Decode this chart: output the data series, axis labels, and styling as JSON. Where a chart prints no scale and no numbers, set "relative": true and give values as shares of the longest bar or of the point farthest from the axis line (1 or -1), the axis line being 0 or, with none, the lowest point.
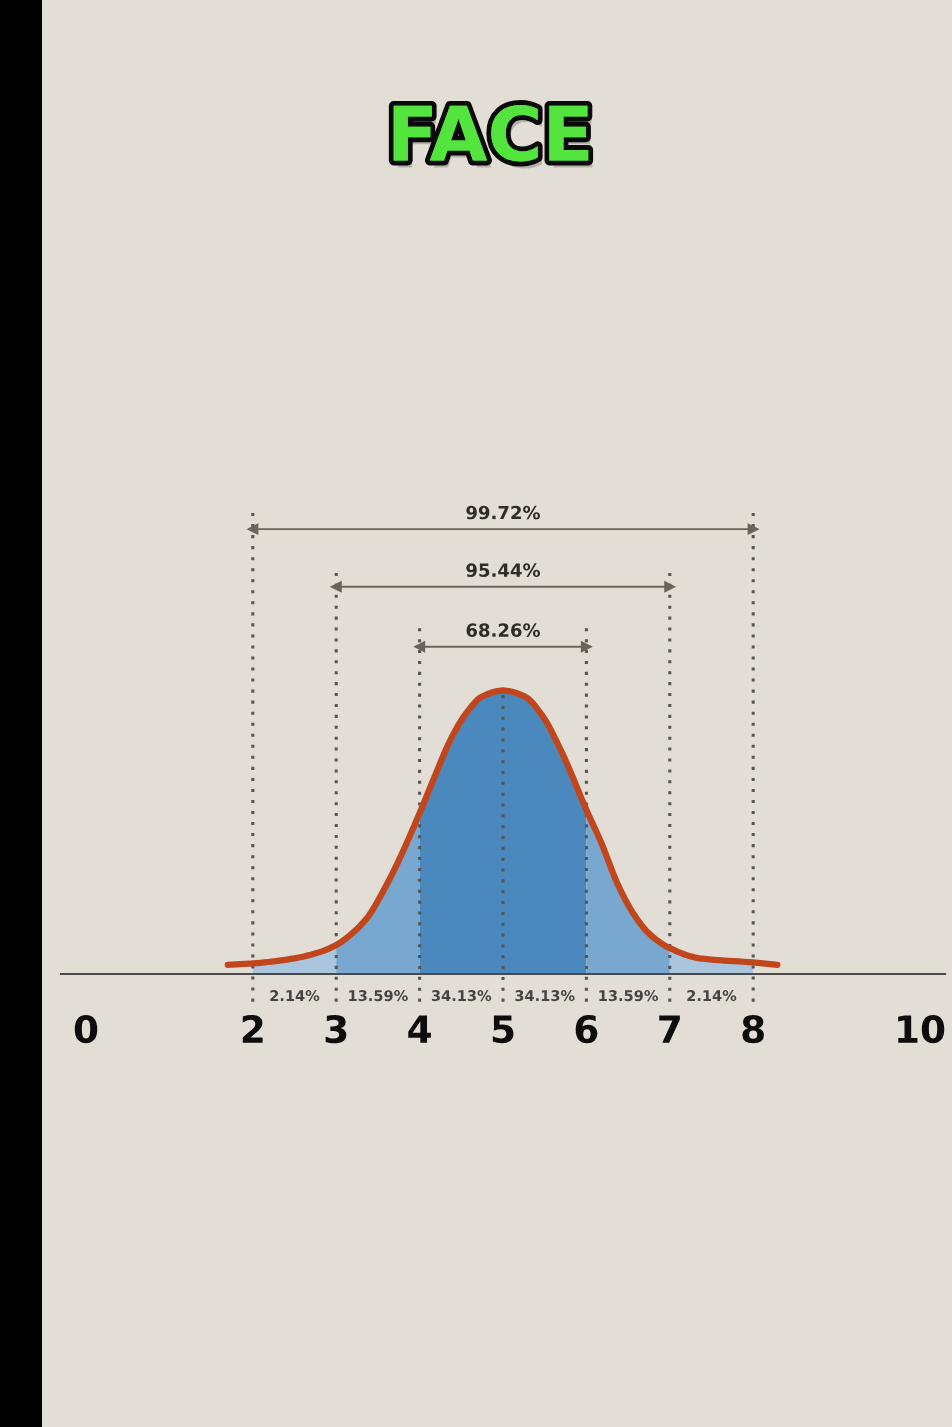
{
  "chart_data": {
    "type": "line",
    "title": "FACE",
    "relative": true,
    "tick_labels": "x",
    "xlim": [
      -0.3,
      10.3
    ],
    "xticks": [
      0,
      2,
      3,
      4,
      5,
      6,
      7,
      8,
      10
    ],
    "series": [
      {
        "type": "area",
        "color": "#a9c6de",
        "x": [
          2,
          2.5,
          2.81,
          3
        ],
        "values": [
          0.023,
          0.034,
          0.048,
          0.063
        ]
      },
      {
        "type": "area",
        "color": "#78a8d0",
        "x": [
          3,
          3.19,
          3.38,
          3.57,
          3.77,
          4
        ],
        "values": [
          0.063,
          0.088,
          0.124,
          0.182,
          0.254,
          0.349
        ]
      },
      {
        "type": "area",
        "color": "#4b88bd",
        "x": [
          4,
          4.18,
          4.37,
          4.56,
          4.75,
          5
        ],
        "values": [
          0.349,
          0.428,
          0.508,
          0.566,
          0.602,
          0.615
        ]
      },
      {
        "type": "area",
        "color": "#4b88bd",
        "x": [
          5,
          5.26,
          5.48,
          5.71,
          6
        ],
        "values": [
          0.615,
          0.602,
          0.558,
          0.479,
          0.356
        ]
      },
      {
        "type": "area",
        "color": "#78a8d0",
        "x": [
          6,
          6.18,
          6.37,
          6.56,
          6.75,
          7
        ],
        "values": [
          0.356,
          0.284,
          0.197,
          0.132,
          0.088,
          0.056
        ]
      },
      {
        "type": "area",
        "color": "#a9c6de",
        "x": [
          7,
          7.36,
          8
        ],
        "values": [
          0.056,
          0.034,
          0.025
        ]
      },
      {
        "color": "#555555",
        "line_style": "dotted",
        "x": [
          2,
          2
        ],
        "values": [
          -0.06,
          1
        ]
      },
      {
        "color": "#555555",
        "line_style": "dotted",
        "x": [
          3,
          3
        ],
        "values": [
          -0.06,
          0.87
        ]
      },
      {
        "color": "#555555",
        "line_style": "dotted",
        "x": [
          4,
          4
        ],
        "values": [
          -0.06,
          0.75
        ]
      },
      {
        "color": "#555555",
        "line_style": "dotted",
        "x": [
          5,
          5
        ],
        "values": [
          -0.06,
          0.605
        ]
      },
      {
        "color": "#555555",
        "line_style": "dotted",
        "x": [
          6,
          6
        ],
        "values": [
          -0.06,
          0.75
        ]
      },
      {
        "color": "#555555",
        "line_style": "dotted",
        "x": [
          7,
          7
        ],
        "values": [
          -0.06,
          0.87
        ]
      },
      {
        "color": "#555555",
        "line_style": "dotted",
        "x": [
          8,
          8
        ],
        "values": [
          -0.06,
          1
        ]
      },
      {
        "color": "#c2461b",
        "line_style": "solid",
        "x": [
          1.7,
          2,
          2.5,
          2.81,
          3,
          3.19,
          3.38,
          3.57,
          3.77,
          4,
          4.18,
          4.37,
          4.56,
          4.75,
          5,
          5.26,
          5.48,
          5.71,
          6,
          6.18,
          6.37,
          6.56,
          6.75,
          7,
          7.36,
          8,
          8.29
        ],
        "values": [
          0.02,
          0.023,
          0.034,
          0.048,
          0.063,
          0.088,
          0.124,
          0.182,
          0.254,
          0.349,
          0.428,
          0.508,
          0.566,
          0.602,
          0.615,
          0.602,
          0.558,
          0.479,
          0.356,
          0.284,
          0.197,
          0.132,
          0.088,
          0.056,
          0.034,
          0.025,
          0.02
        ]
      },
      {
        "color": "#6b645a",
        "line_style": "solid",
        "marker": "triangle",
        "x": [
          2,
          8
        ],
        "values": [
          0.965,
          0.965
        ]
      },
      {
        "color": "#6b645a",
        "line_style": "solid",
        "marker": "triangle",
        "x": [
          3,
          7
        ],
        "values": [
          0.84,
          0.84
        ]
      },
      {
        "color": "#6b645a",
        "line_style": "solid",
        "marker": "triangle",
        "x": [
          4,
          6
        ],
        "values": [
          0.71,
          0.71
        ]
      }
    ],
    "annotations": [
      {
        "text": "99.72%",
        "x": 5,
        "y": 0.965
      },
      {
        "text": "95.44%",
        "x": 5,
        "y": 0.84
      },
      {
        "text": "68.26%",
        "x": 5,
        "y": 0.71
      },
      {
        "text": "2.14%",
        "x": 2.5,
        "y": 0
      },
      {
        "text": "13.59%",
        "x": 3.5,
        "y": 0
      },
      {
        "text": "34.13%",
        "x": 4.5,
        "y": 0
      },
      {
        "text": "34.13%",
        "x": 5.5,
        "y": 0
      },
      {
        "text": "13.59%",
        "x": 6.5,
        "y": 0
      },
      {
        "text": "2.14%",
        "x": 7.5,
        "y": 0
      }
    ]
  }
}
